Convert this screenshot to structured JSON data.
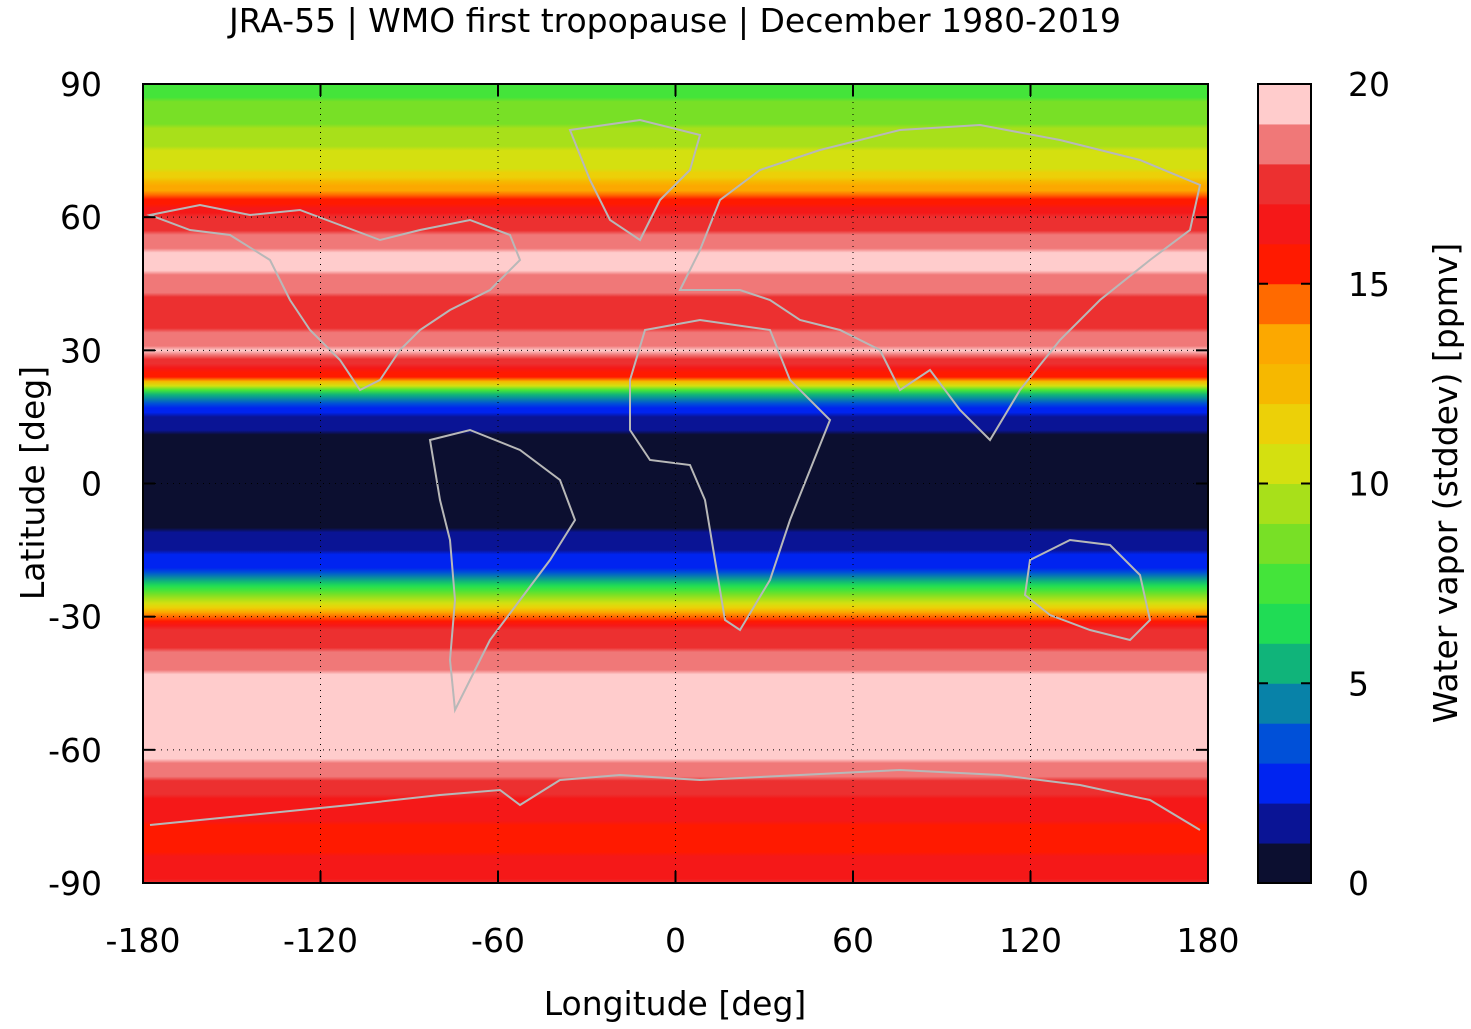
{
  "chart_data": {
    "type": "heatmap",
    "title": "JRA-55 | WMO first tropopause | December 1980-2019",
    "xlabel": "Longitude [deg]",
    "ylabel": "Latitude [deg]",
    "colorbar_label": "Water vapor (stddev) [ppmv]",
    "xlim": [
      -180,
      180
    ],
    "ylim": [
      -90,
      90
    ],
    "x_ticks": [
      "-180",
      "-120",
      "-60",
      "0",
      "60",
      "120",
      "180"
    ],
    "y_ticks": [
      "-90",
      "-60",
      "-30",
      "0",
      "30",
      "60",
      "90"
    ],
    "colorbar_ticks": [
      "0",
      "5",
      "10",
      "15",
      "20"
    ],
    "colorbar_range": [
      0,
      20
    ],
    "grid": true,
    "colorbar_levels": [
      {
        "from": 0,
        "to": 1,
        "color": "#0c0f30"
      },
      {
        "from": 1,
        "to": 2,
        "color": "#0a1495"
      },
      {
        "from": 2,
        "to": 3,
        "color": "#0024f0"
      },
      {
        "from": 3,
        "to": 4,
        "color": "#0050d8"
      },
      {
        "from": 4,
        "to": 5,
        "color": "#0882a8"
      },
      {
        "from": 5,
        "to": 6,
        "color": "#10b47a"
      },
      {
        "from": 6,
        "to": 7,
        "color": "#20dc55"
      },
      {
        "from": 7,
        "to": 8,
        "color": "#44e43a"
      },
      {
        "from": 8,
        "to": 9,
        "color": "#78e026"
      },
      {
        "from": 9,
        "to": 10,
        "color": "#a8e01a"
      },
      {
        "from": 10,
        "to": 11,
        "color": "#d4e010"
      },
      {
        "from": 11,
        "to": 12,
        "color": "#ecd008"
      },
      {
        "from": 12,
        "to": 13,
        "color": "#f6b800"
      },
      {
        "from": 13,
        "to": 14,
        "color": "#fca800"
      },
      {
        "from": 14,
        "to": 15,
        "color": "#ff6a00"
      },
      {
        "from": 15,
        "to": 16,
        "color": "#ff1a00"
      },
      {
        "from": 16,
        "to": 17,
        "color": "#f51818"
      },
      {
        "from": 17,
        "to": 18,
        "color": "#ec3030"
      },
      {
        "from": 18,
        "to": 19,
        "color": "#f07878"
      },
      {
        "from": 19,
        "to": 20,
        "color": "#ffcccc"
      }
    ],
    "zonal_profile": [
      {
        "lat": 90,
        "value": 7.5
      },
      {
        "lat": 80,
        "value": 9.0
      },
      {
        "lat": 70,
        "value": 11.0
      },
      {
        "lat": 62,
        "value": 16.5
      },
      {
        "lat": 50,
        "value": 19.5
      },
      {
        "lat": 38,
        "value": 17.0
      },
      {
        "lat": 30,
        "value": 19.0
      },
      {
        "lat": 24,
        "value": 15.0
      },
      {
        "lat": 20,
        "value": 5.0
      },
      {
        "lat": 15,
        "value": 1.5
      },
      {
        "lat": 8,
        "value": 0.5
      },
      {
        "lat": 0,
        "value": 0.4
      },
      {
        "lat": -8,
        "value": 0.5
      },
      {
        "lat": -14,
        "value": 1.5
      },
      {
        "lat": -20,
        "value": 3.0
      },
      {
        "lat": -25,
        "value": 8.0
      },
      {
        "lat": -29,
        "value": 13.0
      },
      {
        "lat": -33,
        "value": 17.0
      },
      {
        "lat": -45,
        "value": 19.5
      },
      {
        "lat": -60,
        "value": 19.5
      },
      {
        "lat": -70,
        "value": 17.0
      },
      {
        "lat": -80,
        "value": 15.5
      },
      {
        "lat": -90,
        "value": 17.0
      }
    ]
  }
}
